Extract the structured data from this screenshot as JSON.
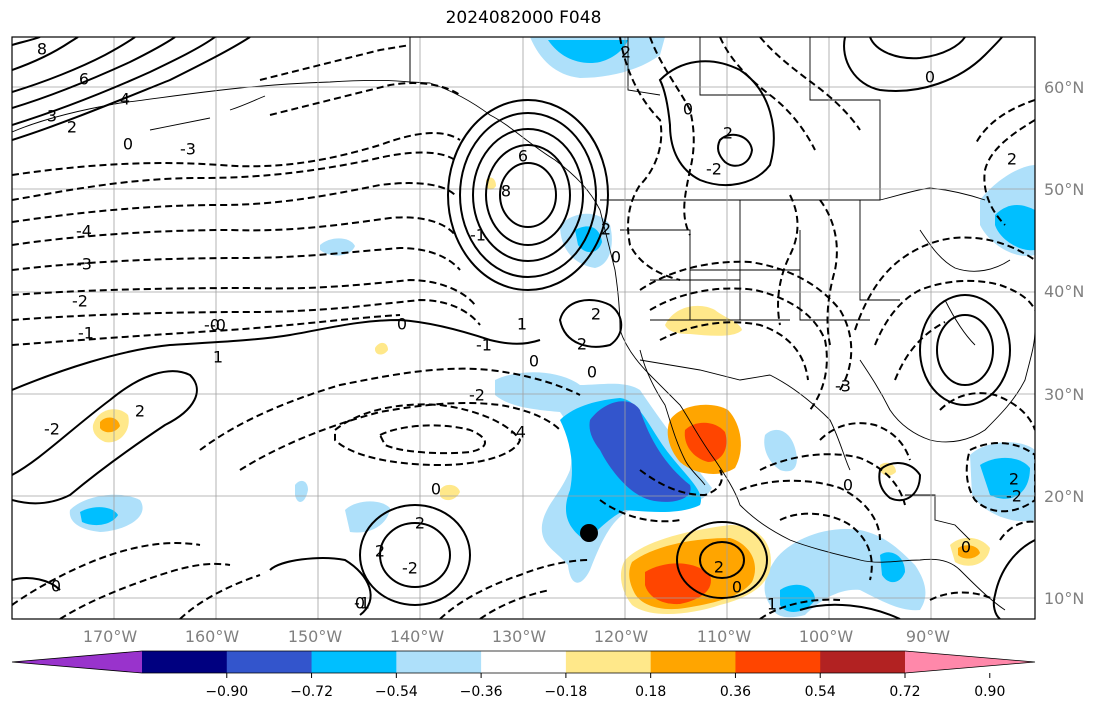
{
  "title": "2024082000 F048",
  "map": {
    "projection": "PlateCarree",
    "lon_ticks": [
      "170°W",
      "160°W",
      "150°W",
      "140°W",
      "130°W",
      "120°W",
      "110°W",
      "100°W",
      "90°W"
    ],
    "lat_ticks": [
      "60°N",
      "50°N",
      "40°N",
      "30°N",
      "20°N",
      "10°N"
    ],
    "gridlines": true,
    "marker": "storm-center-dot"
  },
  "colorbar": {
    "colors": [
      "#9933cc",
      "#000080",
      "#3355cc",
      "#00bfff",
      "#aee0fa",
      "#ffffff",
      "#ffe88a",
      "#ffa500",
      "#ff4500",
      "#b22222",
      "#ff88aa"
    ],
    "labels": [
      "−0.90",
      "−0.72",
      "−0.54",
      "−0.36",
      "−0.18",
      "0.18",
      "0.36",
      "0.54",
      "0.72",
      "0.90"
    ],
    "extend": "both"
  },
  "contour_labels": [
    "8",
    "6",
    "4",
    "3",
    "2",
    "0",
    "-3",
    "-4",
    "-3",
    "-2",
    "-1",
    "-0",
    "1",
    "2",
    "-2",
    "0",
    "-2",
    "1",
    "0",
    "-1",
    "2",
    "0",
    "-4",
    "6",
    "8",
    "2",
    "-2",
    "2",
    "0",
    "-1",
    "0",
    "2",
    "-2",
    "0",
    "2",
    "0",
    "-3",
    "-2",
    "0",
    "2",
    "0",
    "2",
    "2",
    "0",
    "-1",
    "2",
    "1",
    "0",
    "-0",
    "0",
    "2"
  ]
}
